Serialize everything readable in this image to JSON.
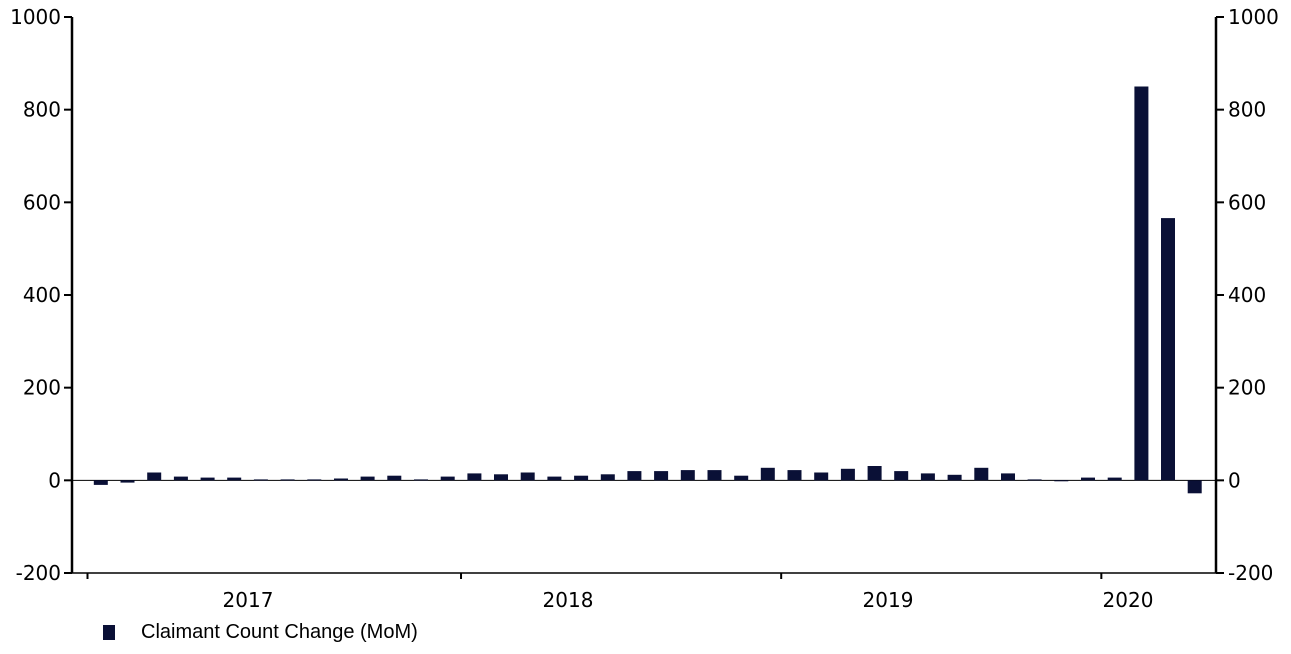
{
  "chart_data": {
    "type": "bar",
    "title": "",
    "xlabel": "",
    "ylabel": "",
    "ylim": [
      -200,
      1000
    ],
    "y_ticks": [
      "1000",
      "800",
      "600",
      "400",
      "200",
      "0",
      "-200"
    ],
    "y_tick_values": [
      1000,
      800,
      600,
      400,
      200,
      0,
      -200
    ],
    "secondary_y_axis": true,
    "year_labels": [
      "2017",
      "2018",
      "2019",
      "2020"
    ],
    "bar_color": "#0a1036",
    "grid": false,
    "legend_position": "bottom-left",
    "series": [
      {
        "name": "Claimant Count Change (MoM)",
        "values": [
          -10,
          -5,
          17,
          8,
          6,
          6,
          2,
          2,
          2,
          4,
          8,
          10,
          2,
          8,
          15,
          13,
          17,
          8,
          10,
          13,
          20,
          20,
          22,
          22,
          10,
          27,
          22,
          17,
          25,
          31,
          20,
          15,
          12,
          27,
          15,
          2,
          0,
          6,
          6,
          850,
          566,
          -28
        ]
      }
    ]
  }
}
